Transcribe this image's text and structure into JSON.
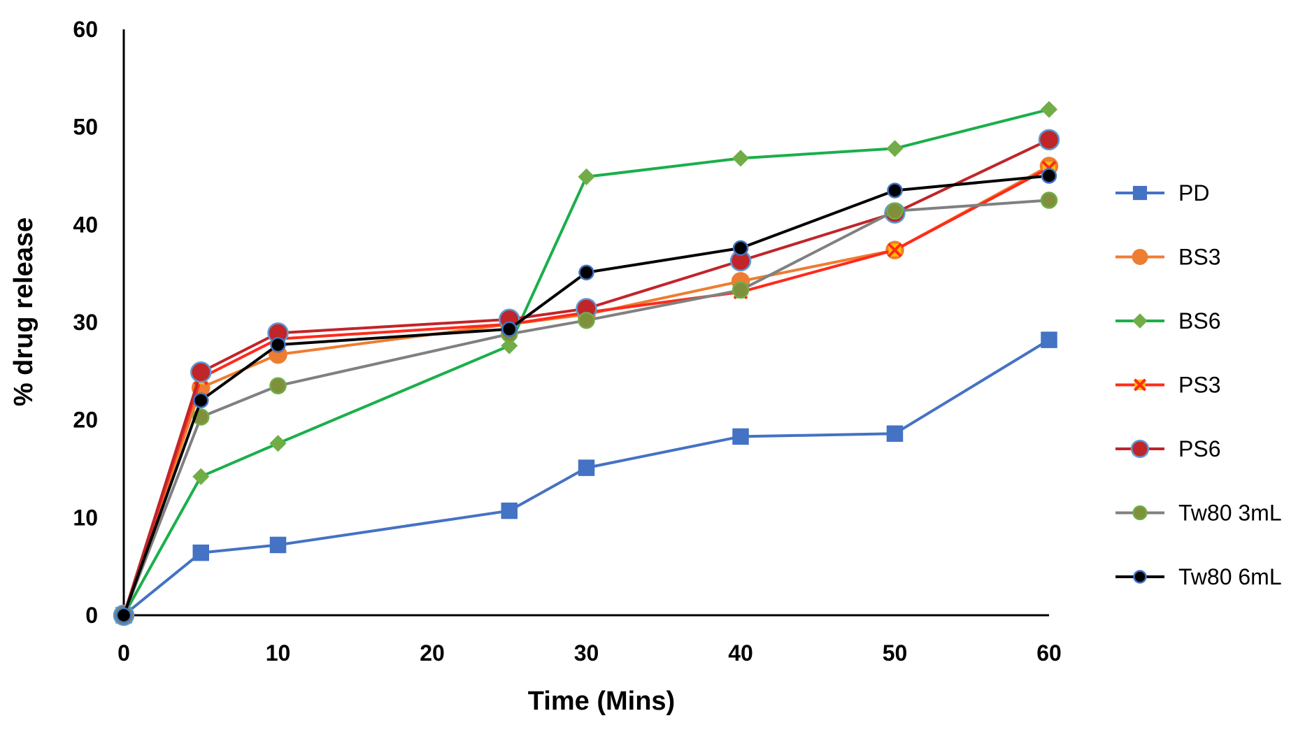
{
  "chart_data": {
    "type": "line",
    "title": "",
    "xlabel": "Time (Mins)",
    "ylabel": "% drug release",
    "xlim": [
      0,
      60
    ],
    "ylim": [
      0,
      60
    ],
    "xticks": [
      0,
      10,
      20,
      30,
      40,
      50,
      60
    ],
    "yticks": [
      0,
      10,
      20,
      30,
      40,
      50,
      60
    ],
    "x": [
      0,
      5,
      10,
      25,
      30,
      40,
      50,
      60
    ],
    "grid": false,
    "legend_position": "right",
    "series": [
      {
        "name": "PD",
        "color": "#4472C4",
        "marker": "square",
        "marker_fill": "#4472C4",
        "marker_stroke": "#4472C4",
        "values": [
          0,
          6.4,
          7.2,
          10.7,
          15.1,
          18.3,
          18.6,
          28.2
        ]
      },
      {
        "name": "BS3",
        "color": "#ED7D31",
        "marker": "circle",
        "marker_fill": "#ED7D31",
        "marker_stroke": "#ED7D31",
        "values": [
          0,
          23.3,
          26.7,
          29.8,
          30.8,
          34.2,
          37.4,
          46.0
        ]
      },
      {
        "name": "BS6",
        "color": "#1AAF4B",
        "marker": "diamond",
        "marker_fill": "#70AD47",
        "marker_stroke": "#70AD47",
        "values": [
          0,
          14.2,
          17.6,
          27.6,
          44.9,
          46.8,
          47.8,
          51.8
        ]
      },
      {
        "name": "PS3",
        "color": "#FF2A1A",
        "marker": "x-square",
        "marker_fill": "#FFC000",
        "marker_stroke": "#FF2A1A",
        "values": [
          0,
          24.3,
          28.3,
          29.8,
          31.0,
          33.1,
          37.4,
          45.8
        ]
      },
      {
        "name": "PS6",
        "color": "#C0252A",
        "marker": "circle",
        "marker_fill": "#C0252A",
        "marker_stroke": "#5B9BD5",
        "values": [
          0,
          24.9,
          28.9,
          30.3,
          31.4,
          36.3,
          41.2,
          48.7
        ]
      },
      {
        "name": "Tw80 3mL",
        "color": "#808080",
        "marker": "circle",
        "marker_fill": "#7F8F3C",
        "marker_stroke": "#70AD47",
        "values": [
          0,
          20.3,
          23.5,
          28.8,
          30.2,
          33.3,
          41.4,
          42.5
        ]
      },
      {
        "name": "Tw80 6mL",
        "color": "#000000",
        "marker": "circle",
        "marker_fill": "#000000",
        "marker_stroke": "#4472C4",
        "values": [
          0,
          22.0,
          27.7,
          29.3,
          35.1,
          37.6,
          43.5,
          45.0
        ]
      }
    ]
  }
}
